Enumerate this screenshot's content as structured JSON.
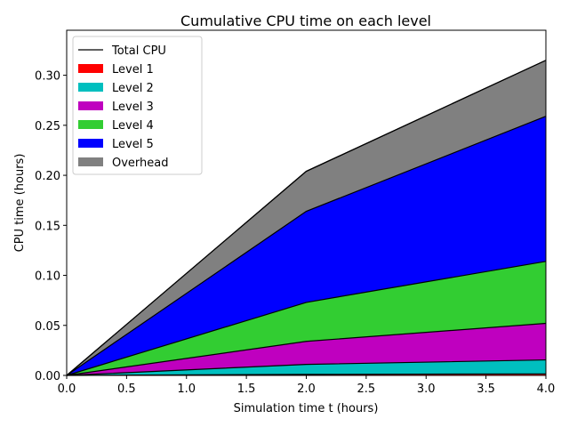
{
  "chart_data": {
    "type": "area",
    "title": "Cumulative CPU time on each level",
    "xlabel": "Simulation time t (hours)",
    "ylabel": "CPU time (hours)",
    "xlim": [
      0,
      4.0
    ],
    "ylim": [
      0,
      0.345
    ],
    "xticks": [
      0,
      0.5,
      1.0,
      1.5,
      2.0,
      2.5,
      3.0,
      3.5,
      4.0
    ],
    "xtick_labels": [
      "0.0",
      "0.5",
      "1.0",
      "1.5",
      "2.0",
      "2.5",
      "3.0",
      "3.5",
      "4.0"
    ],
    "yticks": [
      0,
      0.05,
      0.1,
      0.15,
      0.2,
      0.25,
      0.3
    ],
    "ytick_labels": [
      "0.00",
      "0.05",
      "0.10",
      "0.15",
      "0.20",
      "0.25",
      "0.30"
    ],
    "x": [
      0,
      2.0,
      4.0
    ],
    "stacked": true,
    "series": [
      {
        "name": "Level 1",
        "color": "#ff0000",
        "values": [
          0,
          0.001,
          0.0015
        ]
      },
      {
        "name": "Level 2",
        "color": "#00bfbf",
        "values": [
          0,
          0.01,
          0.014
        ]
      },
      {
        "name": "Level 3",
        "color": "#bf00bf",
        "values": [
          0,
          0.023,
          0.0365
        ]
      },
      {
        "name": "Level 4",
        "color": "#32cd32",
        "values": [
          0,
          0.039,
          0.062
        ]
      },
      {
        "name": "Level 5",
        "color": "#0000ff",
        "values": [
          0,
          0.091,
          0.145
        ]
      },
      {
        "name": "Overhead",
        "color": "#808080",
        "values": [
          0,
          0.04,
          0.056
        ]
      }
    ],
    "total_line": {
      "name": "Total CPU",
      "color": "#000000",
      "values": [
        0,
        0.204,
        0.315
      ]
    },
    "legend": {
      "placement": "upper-left",
      "items": [
        "Total CPU",
        "Level 1",
        "Level 2",
        "Level 3",
        "Level 4",
        "Level 5",
        "Overhead"
      ]
    },
    "grid": false
  }
}
